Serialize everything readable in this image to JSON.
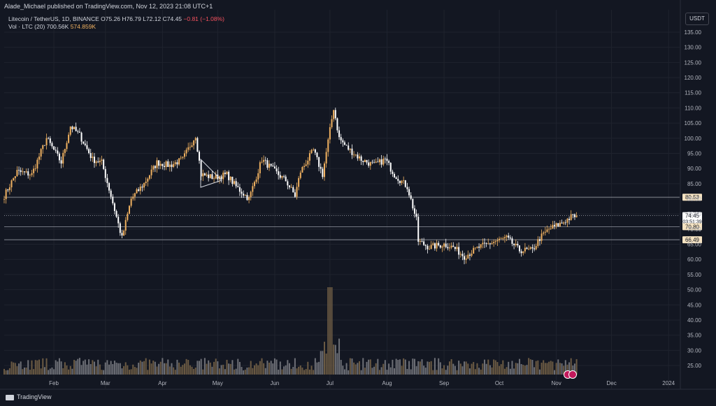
{
  "header": {
    "publish_line": "Alade_Michael published on TradingView.com, Nov 12, 2023 21:08 UTC+1",
    "symbol": "Litecoin / TetherUS, 1D, BINANCE",
    "o_label": "O",
    "o_value": "75.26",
    "h_label": "H",
    "h_value": "76.79",
    "l_label": "L",
    "l_value": "72.12",
    "c_label": "C",
    "c_value": "74.45",
    "change": "−0.81 (−1.08%)",
    "vol_label": "Vol · LTC (20)",
    "vol_ma": "700.56K",
    "vol_value": "574.859K"
  },
  "currency": "USDT",
  "footer": {
    "brand": "TradingView"
  },
  "colors": {
    "up": "#f0b160",
    "down": "#ffffff",
    "background": "#131722",
    "grid": "#1f232e",
    "text": "#d1d4dc"
  },
  "chart_data": {
    "type": "candlestick",
    "y_ticks": [
      "135.00",
      "130.00",
      "125.00",
      "120.00",
      "115.00",
      "110.00",
      "105.00",
      "100.00",
      "95.00",
      "90.00",
      "85.00",
      "80.00",
      "75.00",
      "70.00",
      "65.00",
      "60.00",
      "55.00",
      "50.00",
      "45.00",
      "40.00",
      "35.00",
      "30.00",
      "25.00"
    ],
    "y_tick_values": [
      135,
      130,
      125,
      120,
      115,
      110,
      105,
      100,
      95,
      90,
      85,
      80,
      75,
      70,
      65,
      60,
      55,
      50,
      45,
      40,
      35,
      30,
      25
    ],
    "ylim": [
      21.5,
      138
    ],
    "x_labels": [
      "Feb",
      "Mar",
      "Apr",
      "May",
      "Jun",
      "Jul",
      "Aug",
      "Sep",
      "Oct",
      "Nov",
      "Dec",
      "2024"
    ],
    "x_label_dates": [
      "2023-02-01",
      "2023-03-01",
      "2023-04-01",
      "2023-05-01",
      "2023-06-01",
      "2023-07-01",
      "2023-08-01",
      "2023-09-01",
      "2023-10-01",
      "2023-11-01",
      "2023-12-01",
      "2024-01-01"
    ],
    "date_range": [
      "2023-01-05",
      "2024-01-07"
    ],
    "price_anchors": [
      [
        "2023-01-05",
        81
      ],
      [
        "2023-01-12",
        89
      ],
      [
        "2023-01-20",
        88
      ],
      [
        "2023-01-28",
        100
      ],
      [
        "2023-02-05",
        92
      ],
      [
        "2023-02-10",
        104
      ],
      [
        "2023-02-15",
        101
      ],
      [
        "2023-02-22",
        93
      ],
      [
        "2023-02-27",
        92
      ],
      [
        "2023-03-04",
        81
      ],
      [
        "2023-03-10",
        67
      ],
      [
        "2023-03-15",
        80
      ],
      [
        "2023-03-22",
        85
      ],
      [
        "2023-03-29",
        92
      ],
      [
        "2023-04-05",
        91
      ],
      [
        "2023-04-12",
        93
      ],
      [
        "2023-04-19",
        101
      ],
      [
        "2023-04-22",
        88
      ],
      [
        "2023-04-29",
        87
      ],
      [
        "2023-05-06",
        88
      ],
      [
        "2023-05-11",
        84
      ],
      [
        "2023-05-18",
        80
      ],
      [
        "2023-05-25",
        93
      ],
      [
        "2023-06-01",
        89
      ],
      [
        "2023-06-07",
        86
      ],
      [
        "2023-06-12",
        81
      ],
      [
        "2023-06-15",
        89
      ],
      [
        "2023-06-22",
        96
      ],
      [
        "2023-06-27",
        88
      ],
      [
        "2023-07-03",
        110
      ],
      [
        "2023-07-06",
        100
      ],
      [
        "2023-07-10",
        97
      ],
      [
        "2023-07-18",
        93
      ],
      [
        "2023-07-25",
        91
      ],
      [
        "2023-07-31",
        93
      ],
      [
        "2023-08-05",
        88
      ],
      [
        "2023-08-12",
        84
      ],
      [
        "2023-08-17",
        73
      ],
      [
        "2023-08-18",
        66
      ],
      [
        "2023-08-24",
        64
      ],
      [
        "2023-09-01",
        65
      ],
      [
        "2023-09-06",
        64
      ],
      [
        "2023-09-12",
        61
      ],
      [
        "2023-09-20",
        64
      ],
      [
        "2023-09-29",
        66
      ],
      [
        "2023-10-05",
        67
      ],
      [
        "2023-10-12",
        63
      ],
      [
        "2023-10-19",
        63
      ],
      [
        "2023-10-23",
        67
      ],
      [
        "2023-10-28",
        70
      ],
      [
        "2023-11-04",
        72
      ],
      [
        "2023-11-09",
        74
      ],
      [
        "2023-11-12",
        74.45
      ]
    ],
    "horizontal_levels": [
      {
        "value": 80.53,
        "label": "80.53",
        "style": "solid"
      },
      {
        "value": 74.45,
        "label": "74.45",
        "sublabel": "03:51:39",
        "style": "dotted"
      },
      {
        "value": 70.8,
        "label": "70.80",
        "style": "solid"
      },
      {
        "value": 66.49,
        "label": "66.49",
        "style": "solid"
      }
    ],
    "volume_spike": [
      "2023-07-01",
      51
    ]
  }
}
